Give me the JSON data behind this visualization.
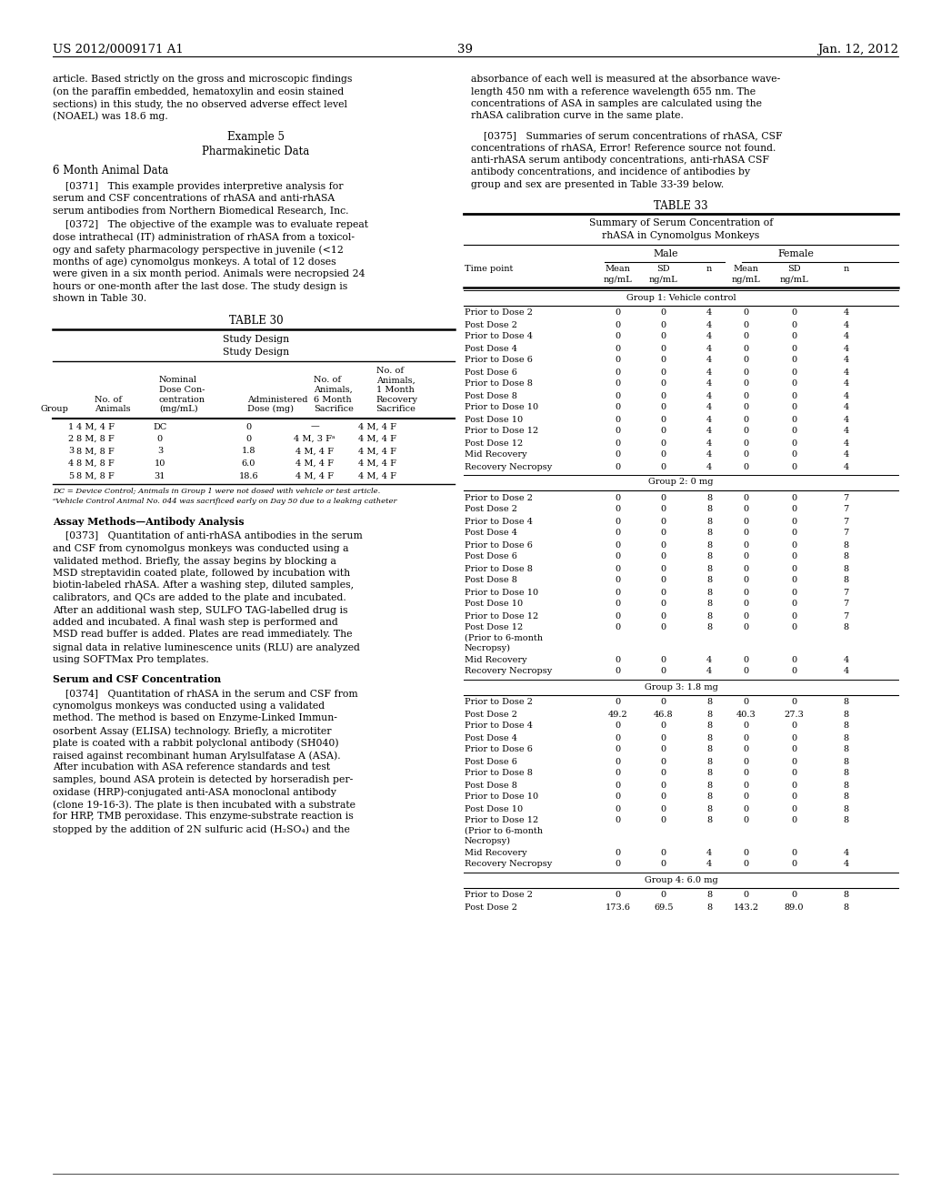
{
  "page_number": "39",
  "patent_number": "US 2012/0009171 A1",
  "patent_date": "Jan. 12, 2012",
  "left_col_lines": [
    "article. Based strictly on the gross and microscopic findings",
    "(on the paraffin embedded, hematoxylin and eosin stained",
    "sections) in this study, the no observed adverse effect level",
    "(NOAEL) was 18.6 mg."
  ],
  "example5_title": "Example 5",
  "example5_subtitle": "Pharmakinetic Data",
  "animal_data_title": "6 Month Animal Data",
  "para0371_lines": [
    "    [0371]   This example provides interpretive analysis for",
    "serum and CSF concentrations of rhASA and anti-rhASA",
    "serum antibodies from Northern Biomedical Research, Inc."
  ],
  "para0372_lines": [
    "    [0372]   The objective of the example was to evaluate repeat",
    "dose intrathecal (IT) administration of rhASA from a toxicol-",
    "ogy and safety pharmacology perspective in juvenile (<12",
    "months of age) cynomolgus monkeys. A total of 12 doses",
    "were given in a six month period. Animals were necropsied 24",
    "hours or one-month after the last dose. The study design is",
    "shown in Table 30."
  ],
  "table30_title": "TABLE 30",
  "table30_subheader1": "Study Design",
  "table30_subheader2": "Study Design",
  "table30_col_headers": [
    "Group",
    "No. of\nAnimals",
    "Nominal\nDose Con-\ncentration\n(mg/mL)",
    "Administered\nDose (mg)",
    "No. of\nAnimals,\n6 Month\nSacrifice",
    "No. of\nAnimals,\n1 Month\nRecovery\nSacrifice"
  ],
  "table30_rows": [
    [
      "1",
      "4 M, 4 F",
      "DC",
      "0",
      "—",
      "4 M, 4 F"
    ],
    [
      "2",
      "8 M, 8 F",
      "0",
      "0",
      "4 M, 3 Fᵃ",
      "4 M, 4 F"
    ],
    [
      "3",
      "8 M, 8 F",
      "3",
      "1.8",
      "4 M, 4 F",
      "4 M, 4 F"
    ],
    [
      "4",
      "8 M, 8 F",
      "10",
      "6.0",
      "4 M, 4 F",
      "4 M, 4 F"
    ],
    [
      "5",
      "8 M, 8 F",
      "31",
      "18.6",
      "4 M, 4 F",
      "4 M, 4 F"
    ]
  ],
  "table30_footnotes": [
    "DC = Device Control; Animals in Group 1 were not dosed with vehicle or test article.",
    "ᵃVehicle Control Animal No. 044 was sacrificed early on Day 50 due to a leaking catheter"
  ],
  "assay_methods_title": "Assay Methods—Antibody Analysis",
  "para0373_lines": [
    "    [0373]   Quantitation of anti-rhASA antibodies in the serum",
    "and CSF from cynomolgus monkeys was conducted using a",
    "validated method. Briefly, the assay begins by blocking a",
    "MSD streptavidin coated plate, followed by incubation with",
    "biotin-labeled rhASA. After a washing step, diluted samples,",
    "calibrators, and QCs are added to the plate and incubated.",
    "After an additional wash step, SULFO TAG-labelled drug is",
    "added and incubated. A final wash step is performed and",
    "MSD read buffer is added. Plates are read immediately. The",
    "signal data in relative luminescence units (RLU) are analyzed",
    "using SOFTMax Pro templates."
  ],
  "serum_csf_title": "Serum and CSF Concentration",
  "para0374_lines": [
    "    [0374]   Quantitation of rhASA in the serum and CSF from",
    "cynomolgus monkeys was conducted using a validated",
    "method. The method is based on Enzyme-Linked Immun-",
    "osorbent Assay (ELISA) technology. Briefly, a microtiter",
    "plate is coated with a rabbit polyclonal antibody (SH040)",
    "raised against recombinant human Arylsulfatase A (ASA).",
    "After incubation with ASA reference standards and test",
    "samples, bound ASA protein is detected by horseradish per-",
    "oxidase (HRP)-conjugated anti-ASA monoclonal antibody",
    "(clone 19-16-3). The plate is then incubated with a substrate",
    "for HRP, TMB peroxidase. This enzyme-substrate reaction is",
    "stopped by the addition of 2N sulfuric acid (H₂SO₄) and the"
  ],
  "right_col_lines": [
    "absorbance of each well is measured at the absorbance wave-",
    "length 450 nm with a reference wavelength 655 nm. The",
    "concentrations of ASA in samples are calculated using the",
    "rhASA calibration curve in the same plate."
  ],
  "para0375_lines": [
    "    [0375]   Summaries of serum concentrations of rhASA, CSF",
    "concentrations of rhASA, Error! Reference source not found.",
    "anti-rhASA serum antibody concentrations, anti-rhASA CSF",
    "antibody concentrations, and incidence of antibodies by",
    "group and sex are presented in Table 33-39 below."
  ],
  "table33_title": "TABLE 33",
  "table33_subtitle1": "Summary of Serum Concentration of",
  "table33_subtitle2": "rhASA in Cynomolgus Monkeys",
  "table33_groups": [
    {
      "name": "Group 1: Vehicle control",
      "rows": [
        [
          "Prior to Dose 2",
          "0",
          "0",
          "4",
          "0",
          "0",
          "4"
        ],
        [
          "Post Dose 2",
          "0",
          "0",
          "4",
          "0",
          "0",
          "4"
        ],
        [
          "Prior to Dose 4",
          "0",
          "0",
          "4",
          "0",
          "0",
          "4"
        ],
        [
          "Post Dose 4",
          "0",
          "0",
          "4",
          "0",
          "0",
          "4"
        ],
        [
          "Prior to Dose 6",
          "0",
          "0",
          "4",
          "0",
          "0",
          "4"
        ],
        [
          "Post Dose 6",
          "0",
          "0",
          "4",
          "0",
          "0",
          "4"
        ],
        [
          "Prior to Dose 8",
          "0",
          "0",
          "4",
          "0",
          "0",
          "4"
        ],
        [
          "Post Dose 8",
          "0",
          "0",
          "4",
          "0",
          "0",
          "4"
        ],
        [
          "Prior to Dose 10",
          "0",
          "0",
          "4",
          "0",
          "0",
          "4"
        ],
        [
          "Post Dose 10",
          "0",
          "0",
          "4",
          "0",
          "0",
          "4"
        ],
        [
          "Prior to Dose 12",
          "0",
          "0",
          "4",
          "0",
          "0",
          "4"
        ],
        [
          "Post Dose 12",
          "0",
          "0",
          "4",
          "0",
          "0",
          "4"
        ],
        [
          "Mid Recovery",
          "0",
          "0",
          "4",
          "0",
          "0",
          "4"
        ],
        [
          "Recovery Necropsy",
          "0",
          "0",
          "4",
          "0",
          "0",
          "4"
        ]
      ]
    },
    {
      "name": "Group 2: 0 mg",
      "rows": [
        [
          "Prior to Dose 2",
          "0",
          "0",
          "8",
          "0",
          "0",
          "7"
        ],
        [
          "Post Dose 2",
          "0",
          "0",
          "8",
          "0",
          "0",
          "7"
        ],
        [
          "Prior to Dose 4",
          "0",
          "0",
          "8",
          "0",
          "0",
          "7"
        ],
        [
          "Post Dose 4",
          "0",
          "0",
          "8",
          "0",
          "0",
          "7"
        ],
        [
          "Prior to Dose 6",
          "0",
          "0",
          "8",
          "0",
          "0",
          "8"
        ],
        [
          "Post Dose 6",
          "0",
          "0",
          "8",
          "0",
          "0",
          "8"
        ],
        [
          "Prior to Dose 8",
          "0",
          "0",
          "8",
          "0",
          "0",
          "8"
        ],
        [
          "Post Dose 8",
          "0",
          "0",
          "8",
          "0",
          "0",
          "8"
        ],
        [
          "Prior to Dose 10",
          "0",
          "0",
          "8",
          "0",
          "0",
          "7"
        ],
        [
          "Post Dose 10",
          "0",
          "0",
          "8",
          "0",
          "0",
          "7"
        ],
        [
          "Prior to Dose 12",
          "0",
          "0",
          "8",
          "0",
          "0",
          "7"
        ],
        [
          "Post Dose 12\n(Prior to 6-month\nNecropsy)",
          "0",
          "0",
          "8",
          "0",
          "0",
          "8"
        ],
        [
          "Mid Recovery",
          "0",
          "0",
          "4",
          "0",
          "0",
          "4"
        ],
        [
          "Recovery Necropsy",
          "0",
          "0",
          "4",
          "0",
          "0",
          "4"
        ]
      ]
    },
    {
      "name": "Group 3: 1.8 mg",
      "rows": [
        [
          "Prior to Dose 2",
          "0",
          "0",
          "8",
          "0",
          "0",
          "8"
        ],
        [
          "Post Dose 2",
          "49.2",
          "46.8",
          "8",
          "40.3",
          "27.3",
          "8"
        ],
        [
          "Prior to Dose 4",
          "0",
          "0",
          "8",
          "0",
          "0",
          "8"
        ],
        [
          "Post Dose 4",
          "0",
          "0",
          "8",
          "0",
          "0",
          "8"
        ],
        [
          "Prior to Dose 6",
          "0",
          "0",
          "8",
          "0",
          "0",
          "8"
        ],
        [
          "Post Dose 6",
          "0",
          "0",
          "8",
          "0",
          "0",
          "8"
        ],
        [
          "Prior to Dose 8",
          "0",
          "0",
          "8",
          "0",
          "0",
          "8"
        ],
        [
          "Post Dose 8",
          "0",
          "0",
          "8",
          "0",
          "0",
          "8"
        ],
        [
          "Prior to Dose 10",
          "0",
          "0",
          "8",
          "0",
          "0",
          "8"
        ],
        [
          "Post Dose 10",
          "0",
          "0",
          "8",
          "0",
          "0",
          "8"
        ],
        [
          "Prior to Dose 12\n(Prior to 6-month\nNecropsy)",
          "0",
          "0",
          "8",
          "0",
          "0",
          "8"
        ],
        [
          "Mid Recovery",
          "0",
          "0",
          "4",
          "0",
          "0",
          "4"
        ],
        [
          "Recovery Necropsy",
          "0",
          "0",
          "4",
          "0",
          "0",
          "4"
        ]
      ]
    },
    {
      "name": "Group 4: 6.0 mg",
      "rows": [
        [
          "Prior to Dose 2",
          "0",
          "0",
          "8",
          "0",
          "0",
          "8"
        ],
        [
          "Post Dose 2",
          "173.6",
          "69.5",
          "8",
          "143.2",
          "89.0",
          "8"
        ]
      ]
    }
  ]
}
